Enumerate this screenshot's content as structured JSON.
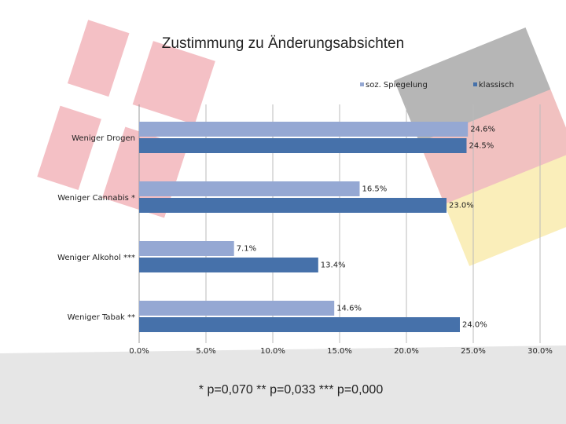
{
  "chart_data": {
    "type": "hbar",
    "title": "Zustimmung zu Änderungsabsichten",
    "categories": [
      "Weniger Drogen",
      "Weniger Cannabis *",
      "Weniger Alkohol ***",
      "Weniger Tabak **"
    ],
    "series": [
      {
        "name": "soz. Spiegelung",
        "color": "#95a8d3",
        "values": [
          24.6,
          16.5,
          7.1,
          14.6
        ],
        "value_labels": [
          "24.6%",
          "16.5%",
          "7.1%",
          "14.6%"
        ]
      },
      {
        "name": "klassisch",
        "color": "#4671aa",
        "values": [
          24.5,
          23.0,
          13.4,
          24.0
        ],
        "value_labels": [
          "24.5%",
          "23.0%",
          "13.4%",
          "24.0%"
        ]
      }
    ],
    "xlim": [
      0,
      30
    ],
    "xticks": [
      {
        "value": 0,
        "label": "0.0%"
      },
      {
        "value": 5,
        "label": "5.0%"
      },
      {
        "value": 10,
        "label": "10.0%"
      },
      {
        "value": 15,
        "label": "15.0%"
      },
      {
        "value": 20,
        "label": "20.0%"
      },
      {
        "value": 25,
        "label": "25.0%"
      },
      {
        "value": 30,
        "label": "30.0%"
      }
    ],
    "grid": true,
    "footnote": "* p=0,070 ** p=0,033 *** p=0,000"
  }
}
